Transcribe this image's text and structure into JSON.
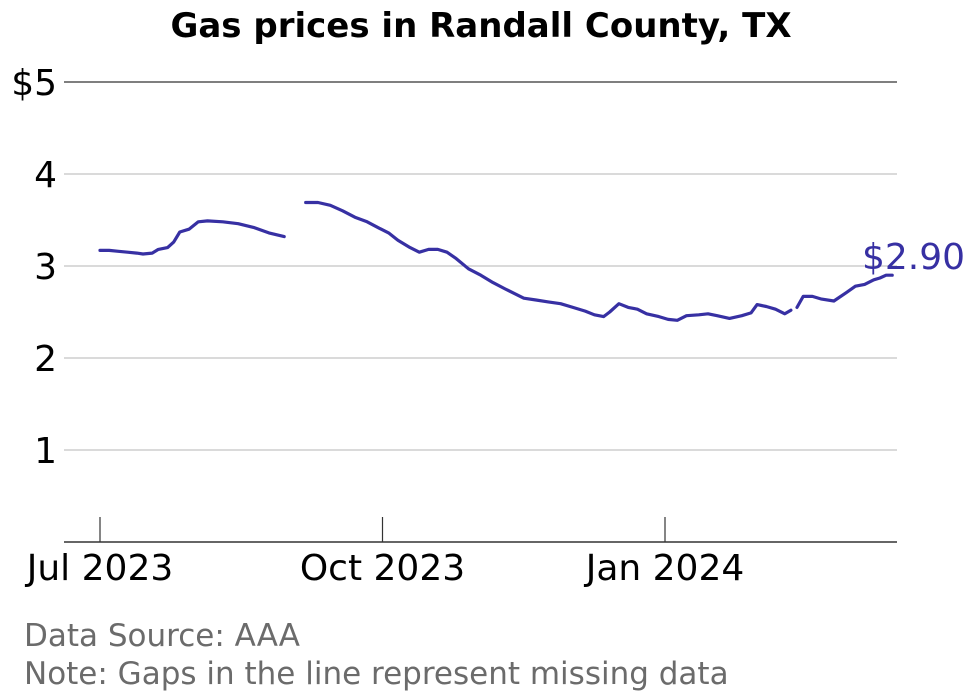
{
  "chart_data": {
    "type": "line",
    "title": "Gas prices in Randall County, TX",
    "xlabel": "",
    "ylabel": "",
    "y_tick_labels": [
      "$5",
      "4",
      "3",
      "2",
      "1"
    ],
    "y_tick_values": [
      5,
      4,
      3,
      2,
      1
    ],
    "x_tick_labels": [
      "Jul 2023",
      "Oct 2023",
      "Jan 2024"
    ],
    "x_tick_values": [
      "2023-07-01",
      "2023-10-01",
      "2024-01-01"
    ],
    "xlim": [
      "2023-06-20",
      "2024-03-20"
    ],
    "ylim": [
      0,
      5
    ],
    "grid": true,
    "color": "#3730a3",
    "end_label": "$2.90",
    "series": [
      {
        "segments": [
          [
            [
              "2023-07-01",
              3.17
            ],
            [
              "2023-07-04",
              3.17
            ],
            [
              "2023-07-07",
              3.16
            ],
            [
              "2023-07-10",
              3.15
            ],
            [
              "2023-07-13",
              3.14
            ],
            [
              "2023-07-15",
              3.13
            ],
            [
              "2023-07-18",
              3.14
            ],
            [
              "2023-07-20",
              3.18
            ],
            [
              "2023-07-23",
              3.2
            ],
            [
              "2023-07-25",
              3.26
            ],
            [
              "2023-07-27",
              3.37
            ],
            [
              "2023-07-30",
              3.4
            ],
            [
              "2023-08-02",
              3.48
            ],
            [
              "2023-08-05",
              3.49
            ],
            [
              "2023-08-10",
              3.48
            ],
            [
              "2023-08-15",
              3.46
            ],
            [
              "2023-08-20",
              3.42
            ],
            [
              "2023-08-25",
              3.36
            ],
            [
              "2023-08-30",
              3.32
            ]
          ],
          [
            [
              "2023-09-06",
              3.69
            ],
            [
              "2023-09-10",
              3.69
            ],
            [
              "2023-09-14",
              3.66
            ],
            [
              "2023-09-18",
              3.6
            ],
            [
              "2023-09-22",
              3.53
            ],
            [
              "2023-09-26",
              3.48
            ],
            [
              "2023-09-30",
              3.41
            ],
            [
              "2023-10-03",
              3.36
            ],
            [
              "2023-10-06",
              3.28
            ],
            [
              "2023-10-10",
              3.2
            ],
            [
              "2023-10-13",
              3.15
            ],
            [
              "2023-10-16",
              3.18
            ],
            [
              "2023-10-19",
              3.18
            ],
            [
              "2023-10-22",
              3.15
            ],
            [
              "2023-10-25",
              3.08
            ],
            [
              "2023-10-29",
              2.97
            ],
            [
              "2023-11-02",
              2.9
            ],
            [
              "2023-11-06",
              2.82
            ],
            [
              "2023-11-10",
              2.75
            ],
            [
              "2023-11-13",
              2.7
            ],
            [
              "2023-11-16",
              2.65
            ],
            [
              "2023-11-20",
              2.63
            ],
            [
              "2023-11-24",
              2.61
            ],
            [
              "2023-11-28",
              2.59
            ],
            [
              "2023-12-02",
              2.55
            ],
            [
              "2023-12-06",
              2.51
            ],
            [
              "2023-12-09",
              2.47
            ],
            [
              "2023-12-12",
              2.45
            ],
            [
              "2023-12-14",
              2.5
            ],
            [
              "2023-12-17",
              2.59
            ],
            [
              "2023-12-20",
              2.55
            ],
            [
              "2023-12-23",
              2.53
            ],
            [
              "2023-12-26",
              2.48
            ],
            [
              "2023-12-30",
              2.45
            ],
            [
              "2024-01-02",
              2.42
            ],
            [
              "2024-01-05",
              2.41
            ],
            [
              "2024-01-08",
              2.46
            ],
            [
              "2024-01-12",
              2.47
            ],
            [
              "2024-01-15",
              2.48
            ],
            [
              "2024-01-18",
              2.46
            ],
            [
              "2024-01-22",
              2.43
            ],
            [
              "2024-01-26",
              2.46
            ],
            [
              "2024-01-29",
              2.49
            ],
            [
              "2024-01-31",
              2.58
            ],
            [
              "2024-02-03",
              2.56
            ],
            [
              "2024-02-06",
              2.53
            ],
            [
              "2024-02-09",
              2.48
            ],
            [
              "2024-02-11",
              2.52
            ]
          ],
          [
            [
              "2024-02-13",
              2.55
            ],
            [
              "2024-02-15",
              2.67
            ],
            [
              "2024-02-18",
              2.67
            ],
            [
              "2024-02-21",
              2.64
            ],
            [
              "2024-02-25",
              2.62
            ],
            [
              "2024-02-29",
              2.71
            ],
            [
              "2024-03-03",
              2.78
            ],
            [
              "2024-03-06",
              2.8
            ],
            [
              "2024-03-09",
              2.85
            ],
            [
              "2024-03-11",
              2.87
            ],
            [
              "2024-03-13",
              2.9
            ],
            [
              "2024-03-15",
              2.9
            ]
          ]
        ]
      }
    ]
  },
  "notes": {
    "source": "Data Source: AAA",
    "gap_note": "Note: Gaps in the line represent missing data"
  }
}
